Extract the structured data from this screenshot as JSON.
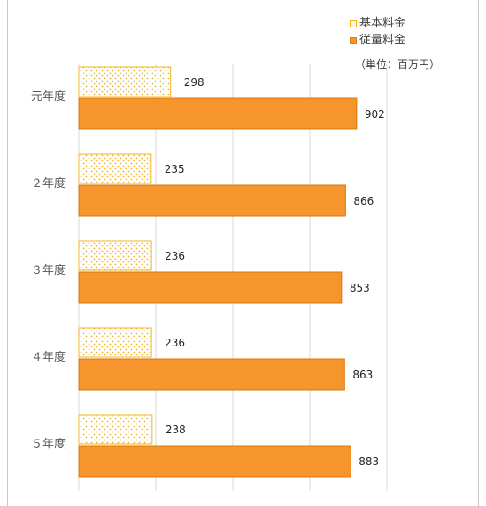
{
  "chart_data": {
    "type": "bar",
    "orientation": "horizontal",
    "categories": [
      "元年度",
      "２年度",
      "３年度",
      "４年度",
      "５年度"
    ],
    "series": [
      {
        "name": "基本料金",
        "values": [
          298,
          235,
          236,
          236,
          238
        ],
        "color": "#f5b41f",
        "pattern": "dotted"
      },
      {
        "name": "従量料金",
        "values": [
          902,
          866,
          853,
          863,
          883
        ],
        "color": "#f7952d",
        "pattern": "solid"
      }
    ],
    "unit_label": "（単位：百万円）",
    "xlim": [
      0,
      1000
    ],
    "gridlines": true,
    "legend": "top-right"
  }
}
